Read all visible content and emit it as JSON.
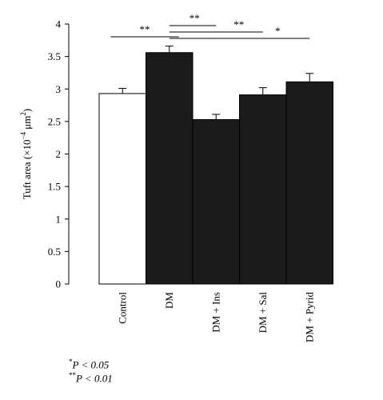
{
  "chart_data": {
    "type": "bar",
    "categories": [
      "Control",
      "DM",
      "DM + Ins",
      "DM + Sal",
      "DM + Pyrid"
    ],
    "values": [
      2.93,
      3.56,
      2.53,
      2.91,
      3.11
    ],
    "errors": [
      0.08,
      0.1,
      0.08,
      0.11,
      0.13
    ],
    "fills": [
      "#ffffff",
      "#1a1a1a",
      "#1a1a1a",
      "#1a1a1a",
      "#1a1a1a"
    ],
    "ylabel_prefix": "Tuft area (×10",
    "ylabel_exp": "−4",
    "ylabel_unit": " μm",
    "ylabel_unit_exp": "2",
    "ylabel_suffix": ")",
    "ylim": [
      0,
      4
    ],
    "yticks": [
      "0",
      "0.5",
      "1",
      "1.5",
      "2",
      "2.5",
      "3",
      "3.5",
      "4"
    ],
    "grid": false,
    "significance": [
      {
        "from": 0,
        "to": 1,
        "stars": "**"
      },
      {
        "from": 1,
        "to": 2,
        "stars": "**"
      },
      {
        "from": 1,
        "to": 3,
        "stars": "**"
      },
      {
        "from": 1,
        "to": 4,
        "stars": "*"
      }
    ]
  },
  "legend": {
    "one_star": "*",
    "one_star_text": "P < 0.05",
    "two_star": "**",
    "two_star_text": "P < 0.01"
  }
}
